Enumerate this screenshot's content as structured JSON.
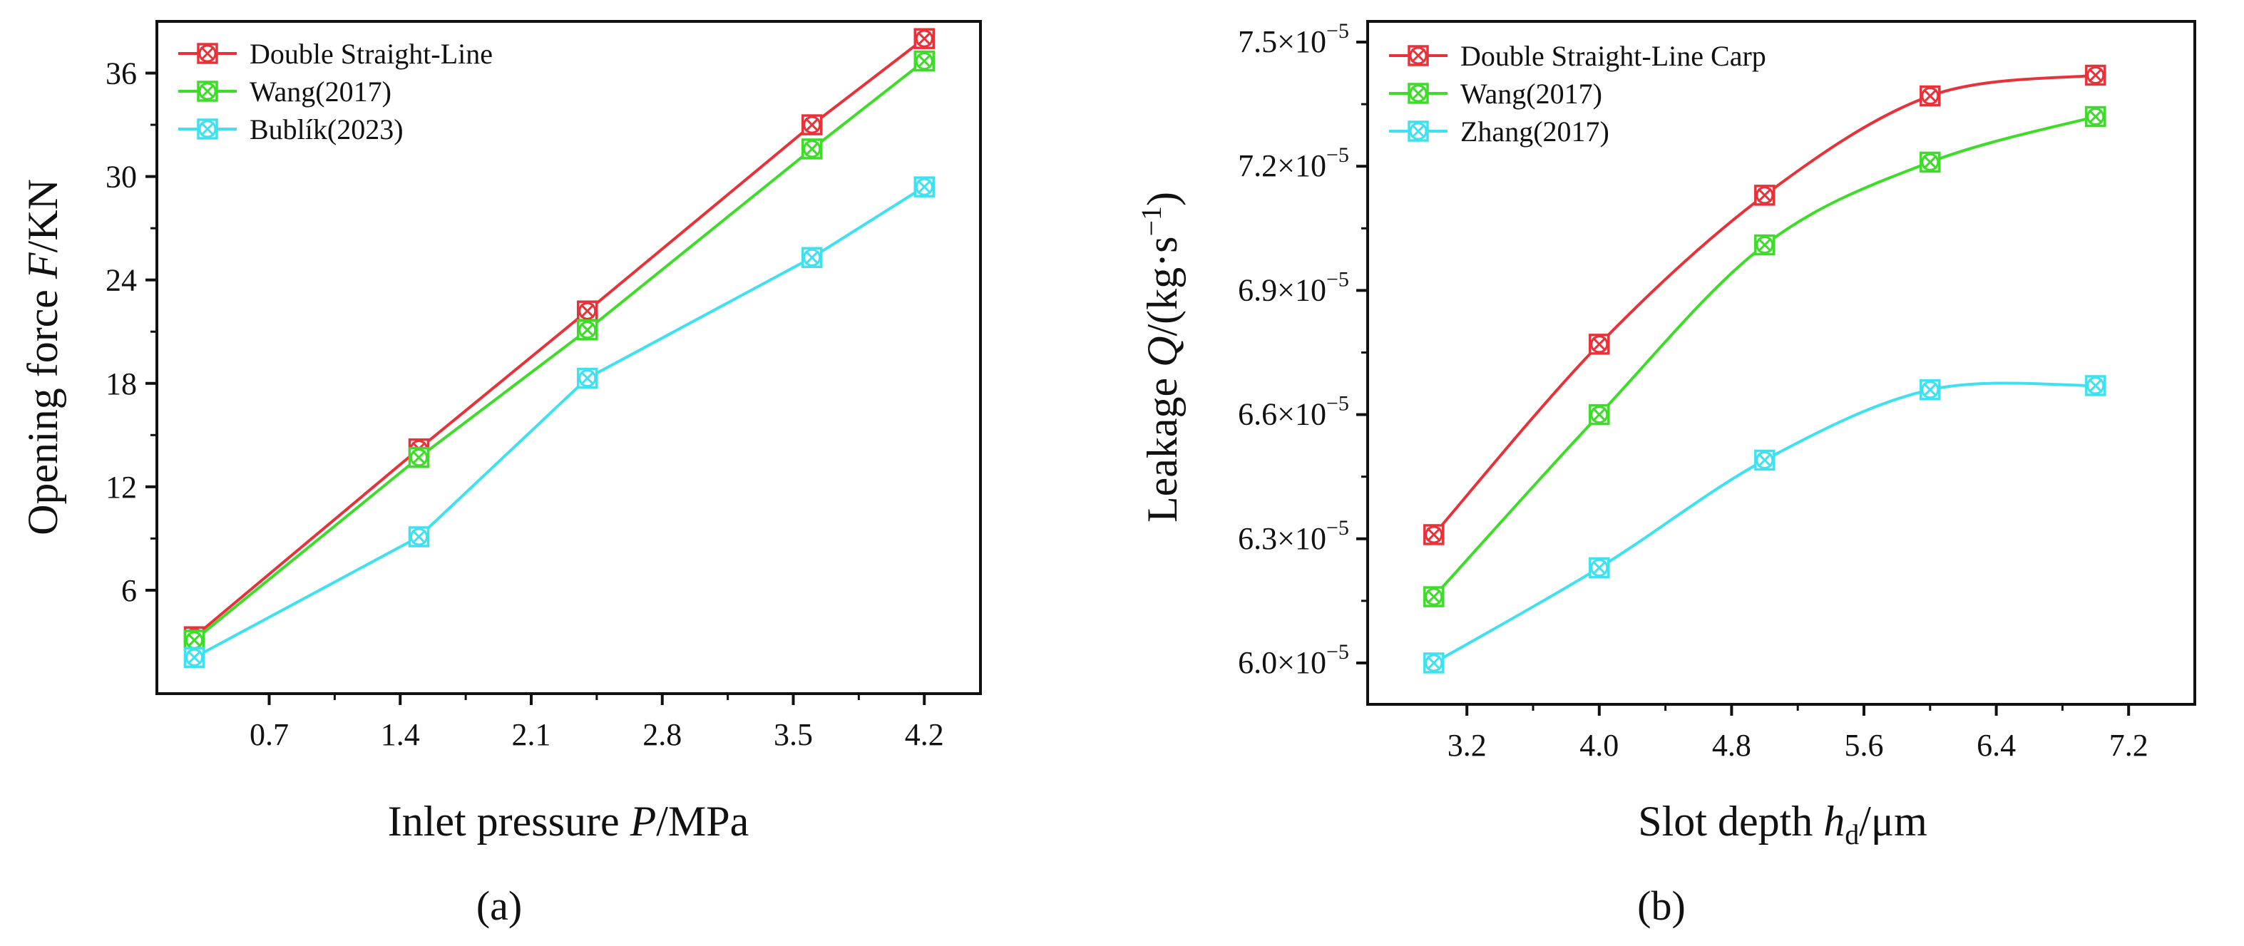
{
  "chart_data": [
    {
      "type": "line",
      "panel_label": "(a)",
      "title": "",
      "xlabel": "Inlet pressure P/MPa",
      "xlabel_parts": {
        "prefix": "Inlet pressure ",
        "var": "P",
        "suffix": "/MPa"
      },
      "ylabel": "Opening force F/KN",
      "ylabel_parts": {
        "prefix": "Opening force ",
        "var": "F",
        "suffix": "/KN"
      },
      "xlim": [
        0.1,
        4.5
      ],
      "ylim": [
        0,
        39
      ],
      "xticks": [
        0.7,
        1.4,
        2.1,
        2.8,
        3.5,
        4.2
      ],
      "xtick_labels": [
        "0.7",
        "1.4",
        "2.1",
        "2.8",
        "3.5",
        "4.2"
      ],
      "yticks": [
        6,
        12,
        18,
        24,
        30,
        36
      ],
      "ytick_labels": [
        "6",
        "12",
        "18",
        "24",
        "30",
        "36"
      ],
      "legend_position": "top-left",
      "grid": false,
      "series": [
        {
          "name": "Double Straight-Line",
          "color": "#e8323a",
          "x": [
            0.3,
            1.5,
            2.4,
            3.6,
            4.2
          ],
          "values": [
            3.3,
            14.2,
            22.2,
            33.0,
            38.0
          ]
        },
        {
          "name": "Wang(2017)",
          "color": "#3ddc28",
          "x": [
            0.3,
            1.5,
            2.4,
            3.6,
            4.2
          ],
          "values": [
            3.1,
            13.7,
            21.1,
            31.6,
            36.7
          ]
        },
        {
          "name": "Bublík(2023)",
          "color": "#3fe0f0",
          "x": [
            0.3,
            1.5,
            2.4,
            3.6,
            4.2
          ],
          "values": [
            2.1,
            9.1,
            18.3,
            25.3,
            29.4
          ]
        }
      ]
    },
    {
      "type": "line",
      "panel_label": "(b)",
      "title": "",
      "xlabel": "Slot depth hd/μm",
      "xlabel_parts": {
        "prefix": "Slot depth ",
        "var": "h",
        "sub": "d",
        "suffix": "/μm"
      },
      "ylabel": "Leakage Q/(kg·s−1)",
      "ylabel_parts": {
        "prefix": "Leakage ",
        "var": "Q",
        "unit": "/(kg·s",
        "sup": "−1",
        "close": ")"
      },
      "xlim": [
        2.6,
        7.6
      ],
      "ylim": [
        5.9,
        7.55
      ],
      "xticks": [
        3.2,
        4.0,
        4.8,
        5.6,
        6.4,
        7.2
      ],
      "xtick_labels": [
        "3.2",
        "4.0",
        "4.8",
        "5.6",
        "6.4",
        "7.2"
      ],
      "yticks": [
        6.0,
        6.3,
        6.6,
        6.9,
        7.2,
        7.5
      ],
      "ytick_labels": [
        "6.0×10",
        "6.3×10",
        "6.6×10",
        "6.9×10",
        "7.2×10",
        "7.5×10"
      ],
      "ytick_exponent": "−5",
      "legend_position": "top-left",
      "grid": false,
      "series": [
        {
          "name": "Double Straight-Line Carp",
          "color": "#e8323a",
          "x": [
            3.0,
            4.0,
            5.0,
            6.0,
            7.0
          ],
          "values": [
            6.31,
            6.77,
            7.13,
            7.37,
            7.42
          ]
        },
        {
          "name": "Wang(2017)",
          "color": "#3ddc28",
          "x": [
            3.0,
            4.0,
            5.0,
            6.0,
            7.0
          ],
          "values": [
            6.16,
            6.6,
            7.01,
            7.21,
            7.32
          ]
        },
        {
          "name": "Zhang(2017)",
          "color": "#3fe0f0",
          "x": [
            3.0,
            4.0,
            5.0,
            6.0,
            7.0
          ],
          "values": [
            6.0,
            6.23,
            6.49,
            6.66,
            6.67
          ]
        }
      ]
    }
  ]
}
